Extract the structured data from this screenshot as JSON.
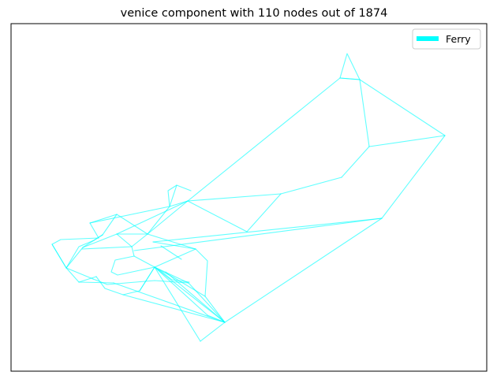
{
  "figure": {
    "title": "venice component with 110 nodes out of 1874"
  },
  "legend": {
    "location": "top-right",
    "entries": [
      {
        "label": "Ferry",
        "color": "#00ffff"
      }
    ]
  },
  "colors": {
    "edge": "#00ffff",
    "frame": "#000000",
    "background": "#ffffff",
    "legend_border": "#cccccc"
  },
  "network": {
    "component_nodes": 110,
    "total_nodes": 1874,
    "mode": "Ferry"
  }
}
